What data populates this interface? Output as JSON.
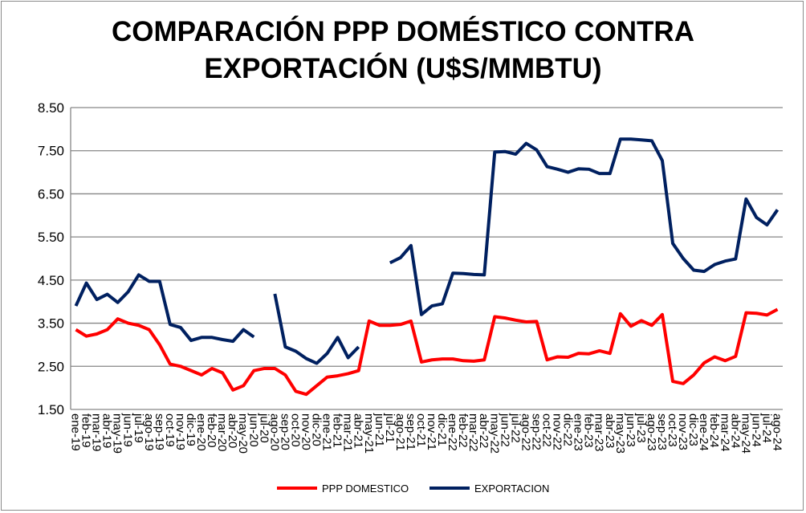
{
  "chart_data": {
    "type": "line",
    "title_lines": [
      "COMPARACIÓN PPP DOMÉSTICO CONTRA",
      "EXPORTACIÓN (U$S/MMBTU)"
    ],
    "xlabel": "",
    "ylabel": "",
    "ylim": [
      1.5,
      8.5
    ],
    "yticks": [
      "1.50",
      "2.50",
      "3.50",
      "4.50",
      "5.50",
      "6.50",
      "7.50",
      "8.50"
    ],
    "grid": true,
    "legend_position": "bottom",
    "categories": [
      "ene-19",
      "feb-19",
      "mar-19",
      "abr-19",
      "may-19",
      "jun-19",
      "jul-19",
      "ago-19",
      "sep-19",
      "oct-19",
      "nov-19",
      "dic-19",
      "ene-20",
      "feb-20",
      "mar-20",
      "abr-20",
      "may-20",
      "jun-20",
      "jul-20",
      "ago-20",
      "sep-20",
      "oct-20",
      "nov-20",
      "dic-20",
      "ene-21",
      "feb-21",
      "mar-21",
      "abr-21",
      "may-21",
      "jun-21",
      "jul-21",
      "ago-21",
      "sep-21",
      "oct-21",
      "nov-21",
      "dic-21",
      "ene-22",
      "feb-22",
      "mar-22",
      "abr-22",
      "may-22",
      "jun-22",
      "jul-22",
      "ago-22",
      "sep-22",
      "oct-22",
      "nov-22",
      "dic-22",
      "ene-23",
      "feb-23",
      "mar-23",
      "abr-23",
      "may-23",
      "jun-23",
      "jul-23",
      "ago-23",
      "sep-23",
      "oct-23",
      "nov-23",
      "dic-23",
      "ene-24",
      "feb-24",
      "mar-24",
      "abr-24",
      "may-24",
      "jun-24",
      "jul-24",
      "ago-24"
    ],
    "series": [
      {
        "name": "PPP DOMESTICO",
        "color": "#ff0000",
        "values": [
          3.35,
          3.2,
          3.25,
          3.35,
          3.6,
          3.5,
          3.45,
          3.35,
          3.0,
          2.55,
          2.5,
          2.4,
          2.3,
          2.45,
          2.35,
          1.95,
          2.05,
          2.4,
          2.45,
          2.45,
          2.3,
          1.92,
          1.85,
          2.05,
          2.25,
          2.28,
          2.33,
          2.4,
          3.55,
          3.45,
          3.45,
          3.47,
          3.55,
          2.6,
          2.65,
          2.67,
          2.67,
          2.63,
          2.62,
          2.65,
          3.65,
          3.62,
          3.57,
          3.53,
          3.54,
          2.65,
          2.72,
          2.71,
          2.8,
          2.79,
          2.86,
          2.8,
          3.72,
          3.43,
          3.56,
          3.45,
          3.7,
          2.15,
          2.1,
          2.3,
          2.58,
          2.72,
          2.63,
          2.73,
          3.74,
          3.73,
          3.69,
          3.82
        ]
      },
      {
        "name": "EXPORTACION",
        "color": "#002060",
        "values": [
          3.9,
          4.43,
          4.05,
          4.17,
          3.98,
          4.23,
          4.62,
          4.47,
          4.47,
          3.47,
          3.4,
          3.1,
          3.17,
          3.17,
          3.12,
          3.08,
          3.35,
          3.18,
          null,
          4.18,
          2.95,
          2.85,
          2.68,
          2.57,
          2.8,
          3.17,
          2.7,
          2.95,
          null,
          null,
          4.9,
          5.02,
          5.3,
          3.7,
          3.9,
          3.95,
          4.66,
          4.65,
          4.63,
          4.62,
          7.47,
          7.48,
          7.42,
          7.67,
          7.52,
          7.13,
          7.07,
          7.0,
          7.08,
          7.07,
          6.97,
          6.97,
          7.77,
          7.77,
          7.75,
          7.73,
          7.27,
          5.35,
          5.0,
          4.73,
          4.7,
          4.86,
          4.94,
          4.99,
          6.38,
          5.95,
          5.78,
          6.13
        ]
      }
    ]
  }
}
